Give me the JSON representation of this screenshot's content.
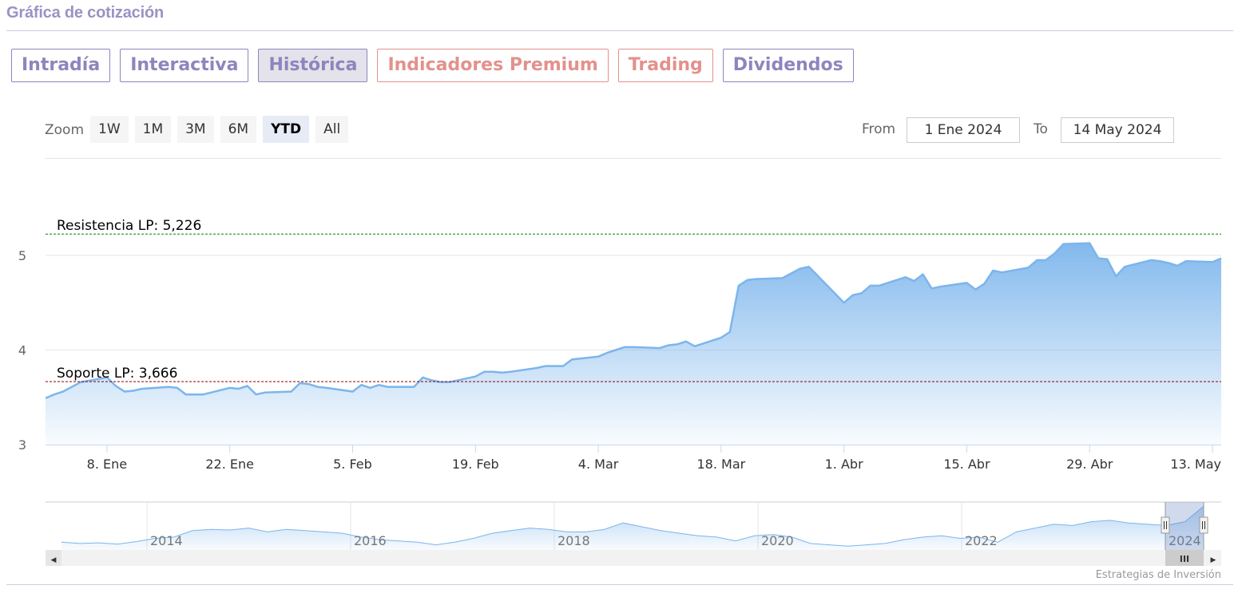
{
  "header": {
    "title": "Gráfica de cotización"
  },
  "tabs": [
    {
      "label": "Intradía",
      "style": "purple",
      "active": false
    },
    {
      "label": "Interactiva",
      "style": "purple",
      "active": false
    },
    {
      "label": "Histórica",
      "style": "purple",
      "active": true
    },
    {
      "label": "Indicadores Premium",
      "style": "salmon",
      "active": false
    },
    {
      "label": "Trading",
      "style": "salmon",
      "active": false
    },
    {
      "label": "Dividendos",
      "style": "purple",
      "active": false
    }
  ],
  "range_selector": {
    "zoom_label": "Zoom",
    "buttons": [
      "1W",
      "1M",
      "3M",
      "6M",
      "YTD",
      "All"
    ],
    "selected": "YTD",
    "from_label": "From",
    "from_value": "1 Ene 2024",
    "to_label": "To",
    "to_value": "14 May 2024"
  },
  "colors": {
    "tab_purple": "#8e85bd",
    "tab_salmon": "#e3918c",
    "series_line": "#7cb5ec",
    "resistance_line": "#0a7a0a",
    "support_line": "#8b0000"
  },
  "chart_data": {
    "type": "area",
    "xlabel": "",
    "ylabel": "",
    "ylim": [
      3,
      5.35
    ],
    "y_ticks": [
      3,
      4,
      5
    ],
    "grid": true,
    "x_tick_labels": [
      "8. Ene",
      "22. Ene",
      "5. Feb",
      "19. Feb",
      "4. Mar",
      "18. Mar",
      "1. Abr",
      "15. Abr",
      "29. Abr",
      "13. May"
    ],
    "x_tick_dates": [
      "2024-01-08",
      "2024-01-22",
      "2024-02-05",
      "2024-02-19",
      "2024-03-04",
      "2024-03-18",
      "2024-04-01",
      "2024-04-15",
      "2024-04-29",
      "2024-05-13"
    ],
    "xlim": [
      "2024-01-01",
      "2024-05-14"
    ],
    "series": [
      {
        "x": [
          "2024-01-01",
          "2024-01-02",
          "2024-01-03",
          "2024-01-04",
          "2024-01-05",
          "2024-01-08",
          "2024-01-09",
          "2024-01-10",
          "2024-01-11",
          "2024-01-12",
          "2024-01-15",
          "2024-01-16",
          "2024-01-17",
          "2024-01-18",
          "2024-01-19",
          "2024-01-22",
          "2024-01-23",
          "2024-01-24",
          "2024-01-25",
          "2024-01-26",
          "2024-01-29",
          "2024-01-30",
          "2024-01-31",
          "2024-02-01",
          "2024-02-02",
          "2024-02-05",
          "2024-02-06",
          "2024-02-07",
          "2024-02-08",
          "2024-02-09",
          "2024-02-12",
          "2024-02-13",
          "2024-02-14",
          "2024-02-15",
          "2024-02-16",
          "2024-02-19",
          "2024-02-20",
          "2024-02-21",
          "2024-02-22",
          "2024-02-23",
          "2024-02-26",
          "2024-02-27",
          "2024-02-28",
          "2024-02-29",
          "2024-03-01",
          "2024-03-04",
          "2024-03-05",
          "2024-03-06",
          "2024-03-07",
          "2024-03-08",
          "2024-03-11",
          "2024-03-12",
          "2024-03-13",
          "2024-03-14",
          "2024-03-15",
          "2024-03-18",
          "2024-03-19",
          "2024-03-20",
          "2024-03-21",
          "2024-03-22",
          "2024-03-25",
          "2024-03-26",
          "2024-03-27",
          "2024-03-28",
          "2024-04-01",
          "2024-04-02",
          "2024-04-03",
          "2024-04-04",
          "2024-04-05",
          "2024-04-08",
          "2024-04-09",
          "2024-04-10",
          "2024-04-11",
          "2024-04-12",
          "2024-04-15",
          "2024-04-16",
          "2024-04-17",
          "2024-04-18",
          "2024-04-19",
          "2024-04-22",
          "2024-04-23",
          "2024-04-24",
          "2024-04-25",
          "2024-04-26",
          "2024-04-29",
          "2024-04-30",
          "2024-05-01",
          "2024-05-02",
          "2024-05-03",
          "2024-05-06",
          "2024-05-07",
          "2024-05-08",
          "2024-05-09",
          "2024-05-10",
          "2024-05-13",
          "2024-05-14"
        ],
        "values": [
          3.49,
          3.53,
          3.56,
          3.61,
          3.66,
          3.71,
          3.62,
          3.56,
          3.57,
          3.59,
          3.61,
          3.6,
          3.53,
          3.53,
          3.53,
          3.6,
          3.59,
          3.62,
          3.53,
          3.55,
          3.56,
          3.65,
          3.64,
          3.61,
          3.6,
          3.56,
          3.63,
          3.6,
          3.63,
          3.61,
          3.61,
          3.71,
          3.68,
          3.66,
          3.66,
          3.72,
          3.77,
          3.77,
          3.76,
          3.77,
          3.81,
          3.83,
          3.83,
          3.83,
          3.9,
          3.93,
          3.97,
          4.0,
          4.03,
          4.03,
          4.02,
          4.05,
          4.06,
          4.09,
          4.04,
          4.13,
          4.19,
          4.68,
          4.74,
          4.75,
          4.76,
          4.81,
          4.86,
          4.88,
          4.5,
          4.58,
          4.6,
          4.68,
          4.68,
          4.77,
          4.73,
          4.8,
          4.65,
          4.67,
          4.71,
          4.64,
          4.7,
          4.84,
          4.82,
          4.87,
          4.95,
          4.95,
          5.02,
          5.12,
          5.13,
          4.97,
          4.96,
          4.78,
          4.88,
          4.95,
          4.94,
          4.92,
          4.89,
          4.94,
          4.93,
          4.97
        ]
      }
    ],
    "reference_lines": [
      {
        "label": "Resistencia LP: 5,226",
        "value": 5.226
      },
      {
        "label": "Soporte LP: 3,666",
        "value": 3.666
      }
    ],
    "navigator": {
      "year_labels": [
        "2014",
        "2016",
        "2018",
        "2020",
        "2022",
        "2024"
      ],
      "scroll_grip": "III",
      "scroll_left_arrow": "◀",
      "scroll_right_arrow": "▶",
      "values": [
        3.2,
        3.1,
        3.15,
        3.05,
        3.25,
        3.5,
        3.6,
        4.1,
        4.2,
        4.15,
        4.3,
        4.0,
        4.2,
        4.1,
        4.0,
        3.9,
        3.6,
        3.4,
        3.3,
        3.2,
        3.0,
        3.2,
        3.5,
        3.9,
        4.1,
        4.3,
        4.2,
        4.0,
        4.0,
        4.2,
        4.7,
        4.4,
        4.1,
        3.9,
        3.7,
        3.6,
        3.3,
        3.7,
        3.8,
        3.6,
        3.1,
        3.0,
        2.9,
        3.0,
        3.1,
        3.4,
        3.6,
        3.7,
        3.5,
        3.6,
        3.2,
        4.0,
        4.3,
        4.6,
        4.5,
        4.8,
        4.9,
        4.7,
        4.6,
        4.5,
        4.8,
        6.0
      ]
    }
  },
  "credits": "Estrategias de Inversión"
}
